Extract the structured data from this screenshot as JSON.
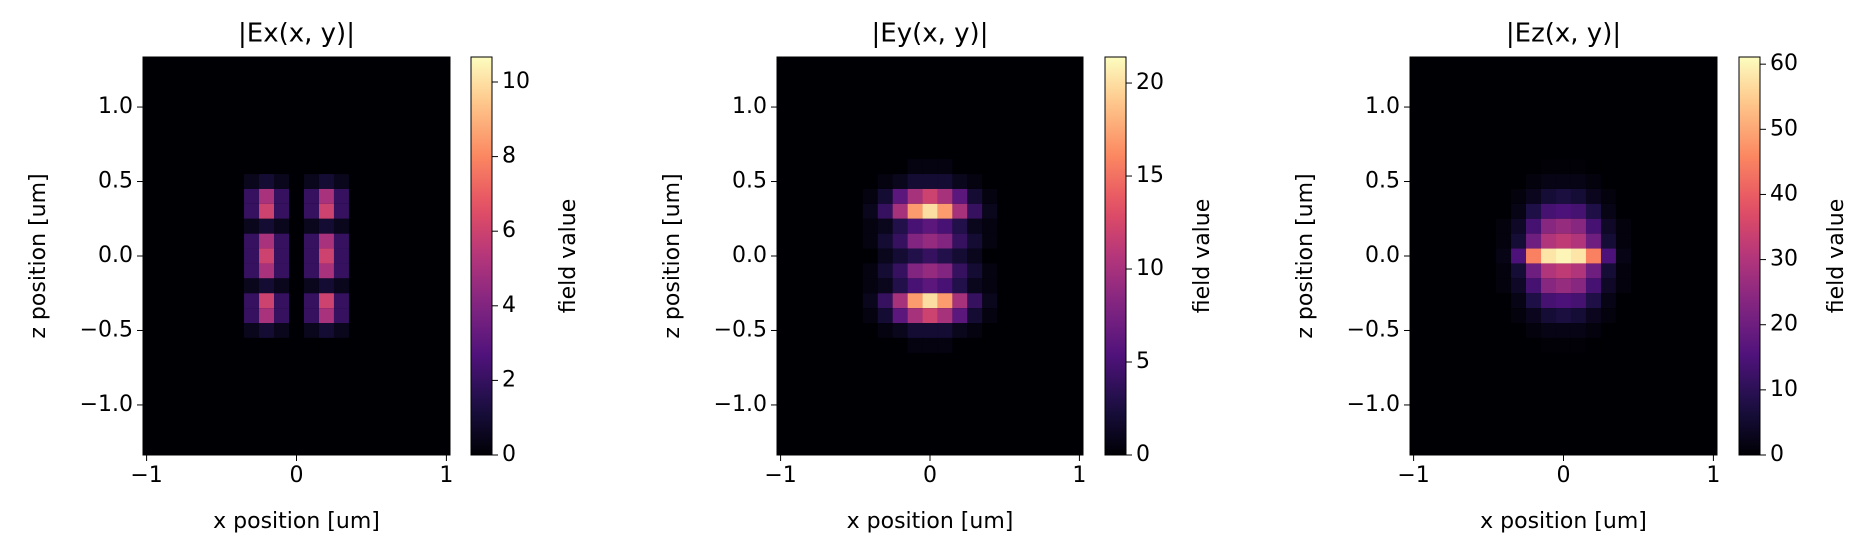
{
  "chart_data": [
    {
      "type": "heatmap",
      "title": "|Ex(x, y)|",
      "x_label": "x position [um]",
      "y_label": "z position [um]",
      "colormap": "magma",
      "x": [
        -0.4,
        -0.3,
        -0.2,
        -0.1,
        0,
        0.1,
        0.2,
        0.3,
        0.4
      ],
      "y": [
        0.6,
        0.5,
        0.4,
        0.3,
        0.2,
        0.1,
        0,
        -0.1,
        -0.2,
        -0.3,
        -0.4,
        -0.5,
        -0.6
      ],
      "values": [
        [
          0,
          0,
          0,
          0,
          0,
          0,
          0,
          0,
          0
        ],
        [
          0,
          0.5,
          1,
          0.5,
          0,
          0.5,
          1,
          0.5,
          0
        ],
        [
          0,
          2,
          5,
          2,
          0,
          2,
          5,
          2,
          0
        ],
        [
          0,
          2,
          6,
          2,
          0,
          2,
          6,
          2,
          0
        ],
        [
          0,
          0.5,
          1,
          0.5,
          0,
          0.5,
          1,
          0.5,
          0
        ],
        [
          0,
          2,
          5,
          2,
          0,
          2,
          5,
          2,
          0
        ],
        [
          0,
          2,
          6,
          2,
          0,
          2,
          6,
          2,
          0
        ],
        [
          0,
          2,
          5,
          2,
          0,
          2,
          5,
          2,
          0
        ],
        [
          0,
          0.5,
          1,
          0.5,
          0,
          0.5,
          1,
          0.5,
          0
        ],
        [
          0,
          2,
          6,
          2,
          0,
          2,
          6,
          2,
          0
        ],
        [
          0,
          2,
          5,
          2,
          0,
          2,
          5,
          2,
          0
        ],
        [
          0,
          0.5,
          1,
          0.5,
          0,
          0.5,
          1,
          0.5,
          0
        ],
        [
          0,
          0,
          0,
          0,
          0,
          0,
          0,
          0,
          0
        ]
      ],
      "xlim": [
        -1.024,
        1.024
      ],
      "ylim": [
        -1.336,
        1.336
      ],
      "xticks": [
        {
          "value": -1,
          "label": "−1"
        },
        0,
        1
      ],
      "yticks": [
        {
          "value": 1,
          "label": "1.0"
        },
        {
          "value": 0.5,
          "label": "0.5"
        },
        {
          "value": 0,
          "label": "0.0"
        },
        {
          "value": -0.5,
          "label": "−0.5"
        },
        {
          "value": -1,
          "label": "−1.0"
        }
      ],
      "colorbar": {
        "label": "field value",
        "lim": [
          0,
          10.67
        ],
        "ticks": [
          0,
          2,
          4,
          6,
          8,
          10
        ]
      }
    },
    {
      "type": "heatmap",
      "title": "|Ey(x, y)|",
      "x_label": "x position [um]",
      "y_label": "z position [um]",
      "colormap": "magma",
      "x": [
        -0.4,
        -0.3,
        -0.2,
        -0.1,
        0,
        0.1,
        0.2,
        0.3,
        0.4
      ],
      "y": [
        0.6,
        0.5,
        0.4,
        0.3,
        0.2,
        0.1,
        0,
        -0.1,
        -0.2,
        -0.3,
        -0.4,
        -0.5,
        -0.6
      ],
      "values": [
        [
          0,
          0,
          0,
          0.5,
          0.5,
          0.5,
          0,
          0,
          0
        ],
        [
          0,
          0.5,
          1,
          2,
          2,
          2,
          1,
          0.5,
          0
        ],
        [
          0.5,
          2,
          6,
          10,
          12,
          10,
          6,
          2,
          0.5
        ],
        [
          1,
          4,
          10,
          17,
          20,
          17,
          10,
          4,
          1
        ],
        [
          0.5,
          1,
          3,
          5,
          6,
          5,
          3,
          1,
          0.5
        ],
        [
          0.5,
          2,
          4,
          8,
          9,
          8,
          4,
          2,
          0.5
        ],
        [
          0,
          1,
          2,
          3,
          4,
          3,
          2,
          1,
          0
        ],
        [
          0.5,
          2,
          4,
          8,
          9,
          8,
          4,
          2,
          0.5
        ],
        [
          0.5,
          1,
          3,
          5,
          6,
          5,
          3,
          1,
          0.5
        ],
        [
          1,
          4,
          10,
          17,
          20,
          17,
          10,
          4,
          1
        ],
        [
          0.5,
          2,
          6,
          10,
          12,
          10,
          6,
          2,
          0.5
        ],
        [
          0,
          0.5,
          1,
          2,
          2,
          2,
          1,
          0.5,
          0
        ],
        [
          0,
          0,
          0,
          0.5,
          0.5,
          0.5,
          0,
          0,
          0
        ]
      ],
      "xlim": [
        -1.024,
        1.024
      ],
      "ylim": [
        -1.336,
        1.336
      ],
      "xticks": [
        {
          "value": -1,
          "label": "−1"
        },
        0,
        1
      ],
      "yticks": [
        {
          "value": 1,
          "label": "1.0"
        },
        {
          "value": 0.5,
          "label": "0.5"
        },
        {
          "value": 0,
          "label": "0.0"
        },
        {
          "value": -0.5,
          "label": "−0.5"
        },
        {
          "value": -1,
          "label": "−1.0"
        }
      ],
      "colorbar": {
        "label": "field value",
        "lim": [
          0,
          21.4
        ],
        "ticks": [
          0,
          5,
          10,
          15,
          20
        ]
      }
    },
    {
      "type": "heatmap",
      "title": "|Ez(x, y)|",
      "x_label": "x position [um]",
      "y_label": "z position [um]",
      "colormap": "magma",
      "x": [
        -0.4,
        -0.3,
        -0.2,
        -0.1,
        0,
        0.1,
        0.2,
        0.3,
        0.4
      ],
      "y": [
        0.6,
        0.5,
        0.4,
        0.3,
        0.2,
        0.1,
        0,
        -0.1,
        -0.2,
        -0.3,
        -0.4,
        -0.5,
        -0.6
      ],
      "values": [
        [
          0,
          0,
          0,
          0.5,
          0.5,
          0.5,
          0,
          0,
          0
        ],
        [
          0,
          0,
          1,
          2,
          2,
          2,
          1,
          0,
          0
        ],
        [
          0,
          1,
          3,
          6,
          7,
          6,
          3,
          1,
          0
        ],
        [
          0,
          2,
          8,
          14,
          15,
          14,
          8,
          2,
          0
        ],
        [
          1,
          4,
          14,
          24,
          26,
          24,
          14,
          4,
          1
        ],
        [
          1,
          6,
          20,
          30,
          32,
          30,
          20,
          6,
          1
        ],
        [
          2,
          15,
          45,
          58,
          60,
          58,
          45,
          15,
          2
        ],
        [
          1,
          6,
          20,
          30,
          32,
          30,
          20,
          6,
          1
        ],
        [
          1,
          4,
          14,
          24,
          26,
          24,
          14,
          4,
          1
        ],
        [
          0,
          2,
          8,
          14,
          15,
          14,
          8,
          2,
          0
        ],
        [
          0,
          1,
          3,
          6,
          7,
          6,
          3,
          1,
          0
        ],
        [
          0,
          0,
          1,
          2,
          2,
          2,
          1,
          0,
          0
        ],
        [
          0,
          0,
          0,
          0.5,
          0.5,
          0.5,
          0,
          0,
          0
        ]
      ],
      "xlim": [
        -1.024,
        1.024
      ],
      "ylim": [
        -1.336,
        1.336
      ],
      "xticks": [
        {
          "value": -1,
          "label": "−1"
        },
        0,
        1
      ],
      "yticks": [
        {
          "value": 1,
          "label": "1.0"
        },
        {
          "value": 0.5,
          "label": "0.5"
        },
        {
          "value": 0,
          "label": "0.0"
        },
        {
          "value": -0.5,
          "label": "−0.5"
        },
        {
          "value": -1,
          "label": "−1.0"
        }
      ],
      "colorbar": {
        "label": "field value",
        "lim": [
          0,
          61.1
        ],
        "ticks": [
          0,
          10,
          20,
          30,
          40,
          50,
          60
        ]
      }
    }
  ]
}
